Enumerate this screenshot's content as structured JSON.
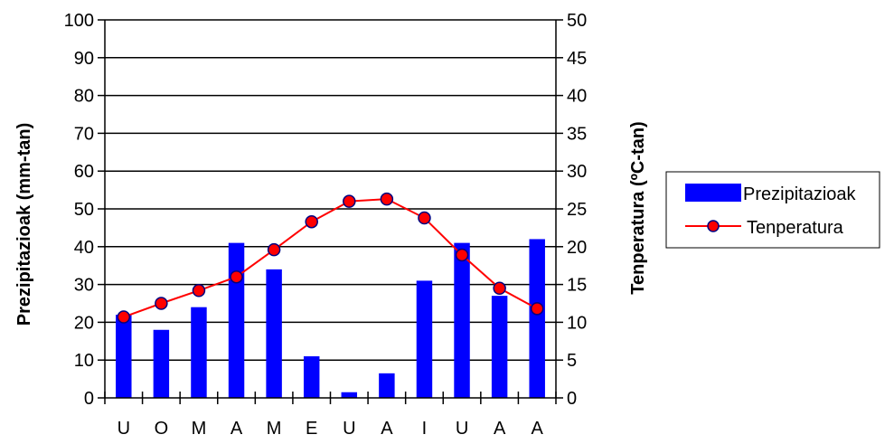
{
  "chart_data": {
    "type": "bar+line",
    "categories": [
      "U",
      "O",
      "M",
      "A",
      "M",
      "E",
      "U",
      "A",
      "I",
      "U",
      "A",
      "A"
    ],
    "series": [
      {
        "name": "Prezipitazioak",
        "type": "bar",
        "axis": "left",
        "values": [
          22,
          18,
          24,
          41,
          34,
          11,
          1.5,
          6.5,
          31,
          41,
          27,
          42
        ]
      },
      {
        "name": "Tenperatura",
        "type": "line",
        "axis": "right",
        "values": [
          10.7,
          12.5,
          14.2,
          16.0,
          19.6,
          23.3,
          26.0,
          26.3,
          23.8,
          18.9,
          14.5,
          11.8
        ]
      }
    ],
    "y_left": {
      "label": "Prezipitazioak (mm-tan)",
      "min": 0,
      "max": 100,
      "step": 10
    },
    "y_right": {
      "label": "Tenperatura (ºC-tan)",
      "min": 0,
      "max": 50,
      "step": 5
    },
    "grid": true,
    "legend": "right",
    "colors": {
      "bar": "#0000FF",
      "line": "#FF0000",
      "marker_fill": "#FF0000",
      "marker_edge": "#000080"
    }
  }
}
